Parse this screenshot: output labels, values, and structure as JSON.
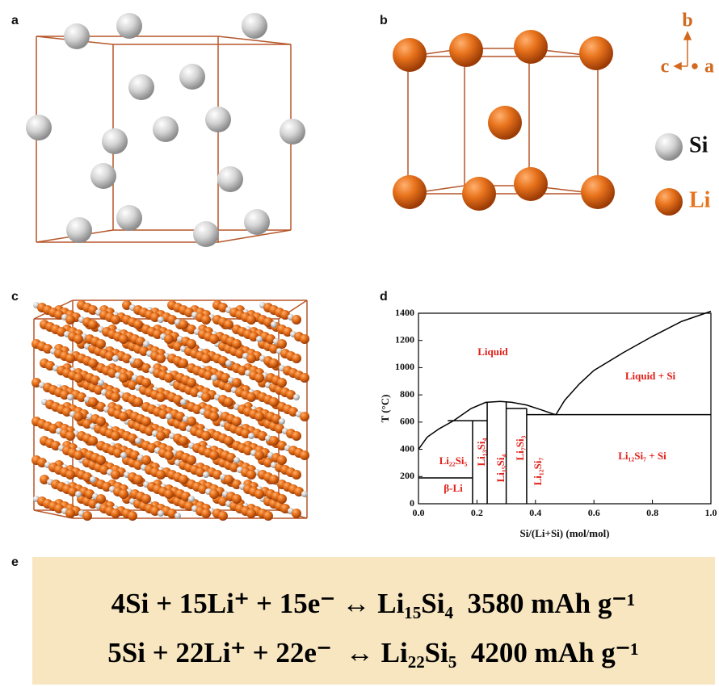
{
  "panel_labels": [
    "a",
    "b",
    "c",
    "d",
    "e"
  ],
  "axes": [
    "b",
    "c",
    "a"
  ],
  "legend": [
    {
      "label": "Si",
      "color": "#d4d4d4"
    },
    {
      "label": "Li",
      "color": "#e8731c"
    }
  ],
  "chart_data": {
    "type": "line",
    "xlabel": "Si/(Li+Si) (mol/mol)",
    "ylabel": "T (°C)",
    "xlim": [
      0,
      1
    ],
    "ylim": [
      0,
      1400
    ],
    "xticks": [
      {
        "value": 0,
        "label": "0.0"
      },
      0.2,
      0.4,
      0.6,
      0.8,
      {
        "value": 1,
        "label": "1.0"
      }
    ],
    "yticks": [
      0,
      200,
      400,
      600,
      800,
      1000,
      1200,
      1400
    ],
    "annotations": [
      "Liquid",
      "Liquid + Si",
      "Li₂₂Si₅",
      "β-Li",
      "Li₁₂Si₇ + Si",
      "Li₁₃Si₄",
      "Li₁₅Si₄",
      "Li₇Si₃",
      "Li₁₂Si₇"
    ],
    "series": [
      {
        "color": "#000000",
        "x": [
          0,
          0.03,
          0.07,
          0.12,
          0.18,
          0.23,
          0.28,
          0.32,
          0.37,
          0.42,
          0.46,
          0.47
        ],
        "values": [
          400,
          490,
          550,
          610,
          700,
          745,
          752,
          745,
          725,
          690,
          660,
          655
        ]
      },
      {
        "color": "#000000",
        "x": [
          0.47,
          0.5,
          0.55,
          0.6,
          0.7,
          0.8,
          0.9,
          1
        ],
        "values": [
          655,
          760,
          880,
          980,
          1110,
          1230,
          1340,
          1414
        ]
      },
      {
        "color": "#000000",
        "x": [
          0,
          0.185
        ],
        "values": [
          190,
          190
        ]
      },
      {
        "color": "#000000",
        "x": [
          0.1,
          0.235
        ],
        "values": [
          610,
          610
        ]
      },
      {
        "color": "#000000",
        "x": [
          0.185,
          0.185
        ],
        "values": [
          0,
          610
        ]
      },
      {
        "color": "#000000",
        "x": [
          0.235,
          0.235
        ],
        "values": [
          0,
          750
        ]
      },
      {
        "color": "#000000",
        "x": [
          0.3,
          0.3
        ],
        "values": [
          0,
          750
        ]
      },
      {
        "color": "#000000",
        "x": [
          0.3,
          0.37
        ],
        "values": [
          700,
          700
        ]
      },
      {
        "color": "#000000",
        "x": [
          0.37,
          0.37
        ],
        "values": [
          0,
          700
        ]
      },
      {
        "color": "#000000",
        "x": [
          0.37,
          1
        ],
        "values": [
          655,
          655
        ]
      }
    ]
  },
  "equations": [
    "4Si + 15Li⁺ + 15e⁻ ↔ Li₁₅Si₄  3580 mAh g⁻¹",
    "5Si + 22Li⁺ + 22e⁻  ↔ Li₂₂Si₅  4200 mAh g⁻¹"
  ]
}
